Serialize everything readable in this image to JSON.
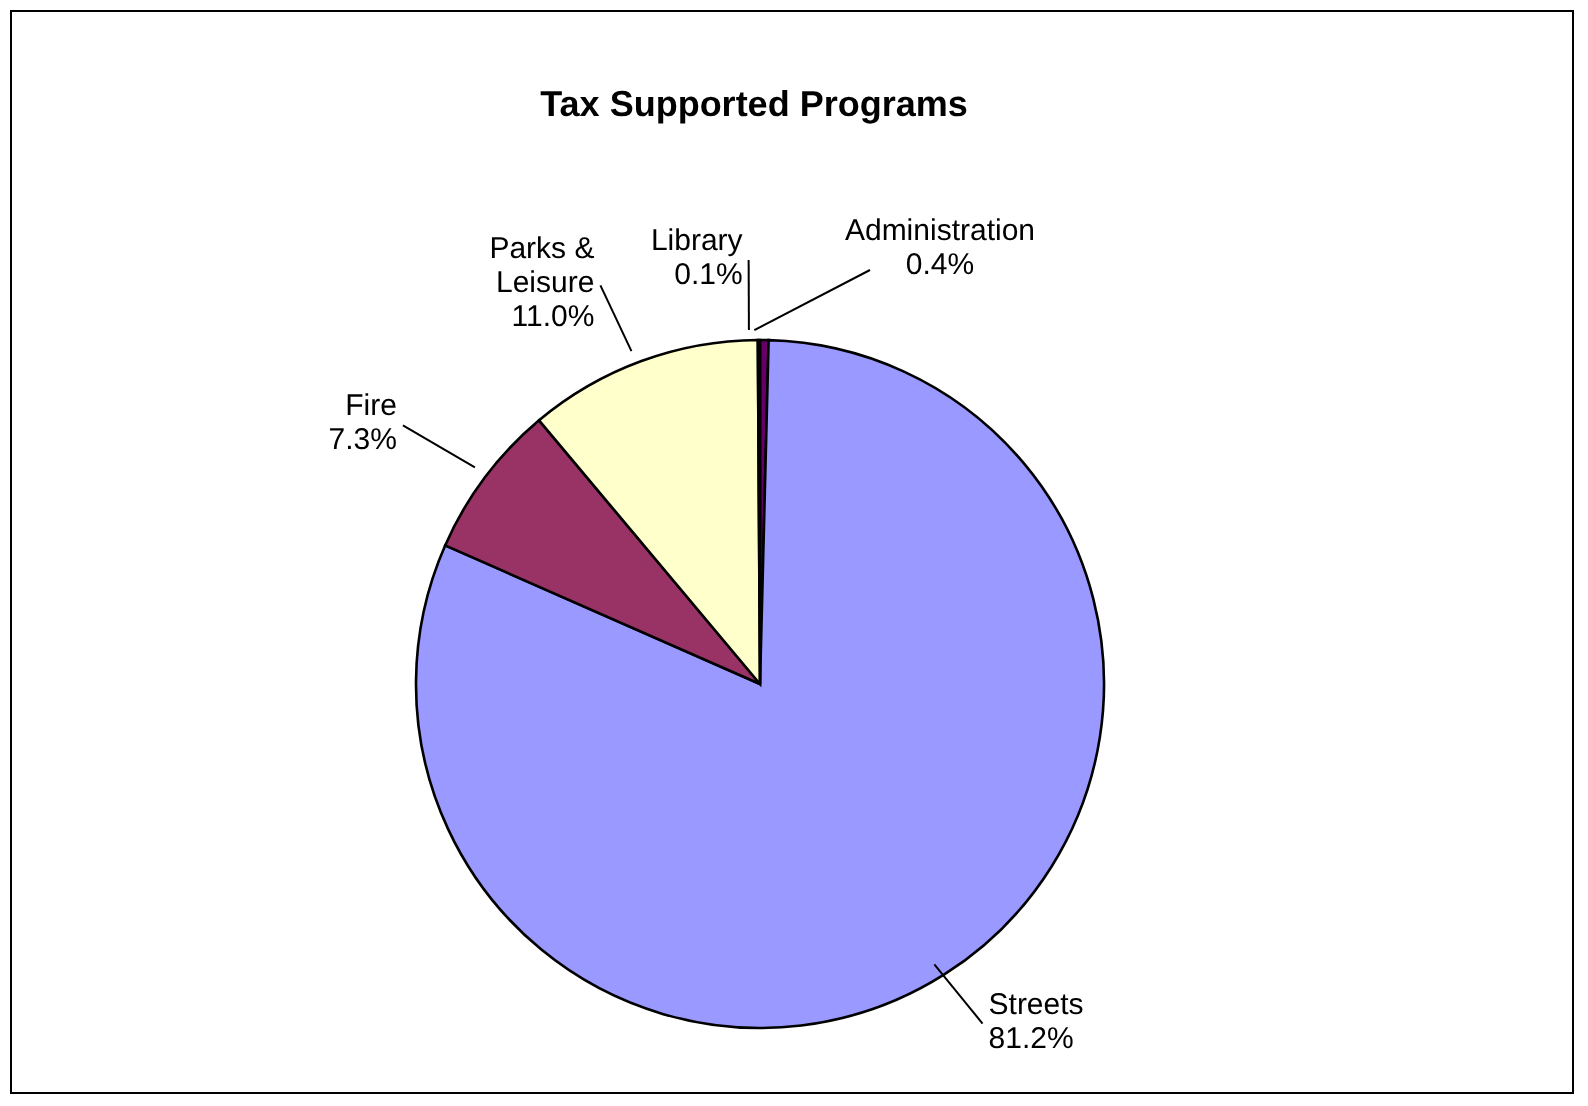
{
  "chart_data": {
    "type": "pie",
    "title": "Tax Supported Programs",
    "categories": [
      "Administration",
      "Streets",
      "Fire",
      "Parks & Leisure",
      "Library"
    ],
    "values": [
      0.4,
      81.2,
      7.3,
      11.0,
      0.1
    ],
    "value_labels": [
      "0.4%",
      "81.2%",
      "7.3%",
      "11.0%",
      "0.1%"
    ],
    "colors": [
      "#660066",
      "#9999ff",
      "#993366",
      "#ffffcc",
      "#ccffff"
    ],
    "legend": false
  }
}
